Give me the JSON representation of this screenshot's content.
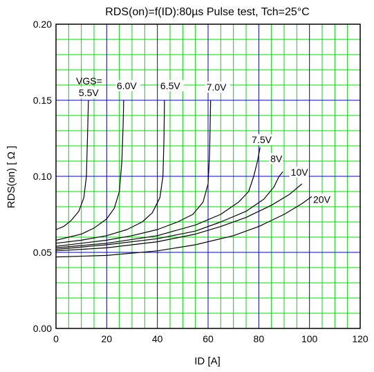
{
  "chart_data": {
    "type": "line",
    "title": "RDS(on)=f(ID):80µs Pulse test, Tch=25°C",
    "xlabel": "ID [A]",
    "ylabel": "RDS(on) [ Ω ]",
    "xlim": [
      0,
      120
    ],
    "ylim": [
      0,
      0.2
    ],
    "x_ticks": [
      "0",
      "20",
      "40",
      "60",
      "80",
      "100",
      "120"
    ],
    "y_ticks": [
      "0.00",
      "0.05",
      "0.10",
      "0.15",
      "0.20"
    ],
    "grid": true,
    "vgs_prefix": "VGS=",
    "series": [
      {
        "name": "5.5V",
        "points": [
          [
            0,
            0.065
          ],
          [
            3,
            0.067
          ],
          [
            6,
            0.071
          ],
          [
            9,
            0.077
          ],
          [
            11,
            0.086
          ],
          [
            12,
            0.1
          ],
          [
            12.5,
            0.13
          ],
          [
            12.8,
            0.15
          ]
        ]
      },
      {
        "name": "6.0V",
        "points": [
          [
            0,
            0.058
          ],
          [
            5,
            0.06
          ],
          [
            10,
            0.062
          ],
          [
            15,
            0.066
          ],
          [
            20,
            0.072
          ],
          [
            23,
            0.079
          ],
          [
            25,
            0.09
          ],
          [
            26,
            0.11
          ],
          [
            26.5,
            0.135
          ],
          [
            26.7,
            0.15
          ]
        ]
      },
      {
        "name": "6.5V",
        "points": [
          [
            0,
            0.056
          ],
          [
            10,
            0.058
          ],
          [
            20,
            0.061
          ],
          [
            28,
            0.065
          ],
          [
            34,
            0.07
          ],
          [
            38,
            0.076
          ],
          [
            41,
            0.086
          ],
          [
            42.2,
            0.1
          ],
          [
            42.6,
            0.125
          ],
          [
            42.8,
            0.15
          ]
        ]
      },
      {
        "name": "7.0V",
        "points": [
          [
            0,
            0.054
          ],
          [
            10,
            0.056
          ],
          [
            20,
            0.058
          ],
          [
            30,
            0.061
          ],
          [
            40,
            0.065
          ],
          [
            48,
            0.07
          ],
          [
            54,
            0.075
          ],
          [
            58,
            0.083
          ],
          [
            60,
            0.095
          ],
          [
            60.6,
            0.115
          ],
          [
            61,
            0.15
          ]
        ]
      },
      {
        "name": "7.5V",
        "points": [
          [
            0,
            0.053
          ],
          [
            20,
            0.056
          ],
          [
            40,
            0.061
          ],
          [
            55,
            0.068
          ],
          [
            65,
            0.075
          ],
          [
            72,
            0.083
          ],
          [
            76,
            0.09
          ],
          [
            78,
            0.1
          ],
          [
            79.5,
            0.11
          ],
          [
            80.5,
            0.119
          ]
        ]
      },
      {
        "name": "8V",
        "points": [
          [
            0,
            0.052
          ],
          [
            20,
            0.055
          ],
          [
            40,
            0.059
          ],
          [
            55,
            0.064
          ],
          [
            65,
            0.07
          ],
          [
            75,
            0.077
          ],
          [
            82,
            0.085
          ],
          [
            86,
            0.093
          ],
          [
            88,
            0.1
          ],
          [
            89.5,
            0.103
          ]
        ]
      },
      {
        "name": "10V",
        "points": [
          [
            0,
            0.051
          ],
          [
            20,
            0.053
          ],
          [
            40,
            0.057
          ],
          [
            55,
            0.062
          ],
          [
            65,
            0.067
          ],
          [
            75,
            0.073
          ],
          [
            85,
            0.081
          ],
          [
            92,
            0.088
          ],
          [
            97,
            0.095
          ]
        ]
      },
      {
        "name": "20V",
        "points": [
          [
            0,
            0.047
          ],
          [
            20,
            0.048
          ],
          [
            40,
            0.051
          ],
          [
            55,
            0.055
          ],
          [
            70,
            0.061
          ],
          [
            80,
            0.067
          ],
          [
            90,
            0.075
          ],
          [
            97,
            0.082
          ],
          [
            102,
            0.088
          ]
        ]
      }
    ]
  },
  "colors": {
    "minor_grid": "#00dd00",
    "major_grid": "#0000cc",
    "curve": "#000000",
    "frame": "#000000"
  }
}
